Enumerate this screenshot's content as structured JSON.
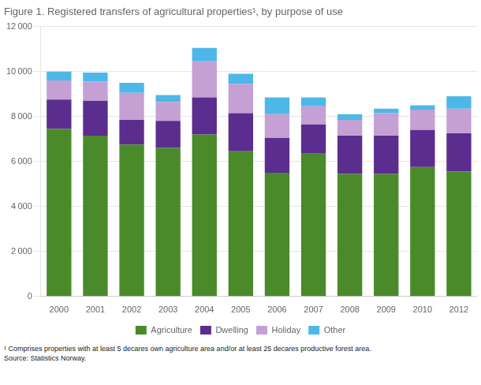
{
  "chart_data": {
    "type": "bar",
    "stacked": true,
    "title": "Figure 1. Registered transfers of agricultural properties¹, by purpose of use",
    "footnote": "¹ Comprises properties with at least 5 decares own agriculture area and/or at least 25 decares productive forest area.\nSource: Statistics Norway.",
    "categories": [
      "2000",
      "2001",
      "2002",
      "2003",
      "2004",
      "2005",
      "2006",
      "2007",
      "2008",
      "2009",
      "2010",
      "2012"
    ],
    "series": [
      {
        "name": "Agriculture",
        "color": "#4a8a2a",
        "values": [
          7450,
          7150,
          6750,
          6600,
          7200,
          6450,
          5500,
          6350,
          5450,
          5450,
          5750,
          5550
        ]
      },
      {
        "name": "Dwelling",
        "color": "#5b2d8e",
        "values": [
          1300,
          1550,
          1100,
          1200,
          1650,
          1700,
          1550,
          1300,
          1700,
          1700,
          1650,
          1700
        ]
      },
      {
        "name": "Holiday",
        "color": "#c4a0d4",
        "values": [
          850,
          850,
          1200,
          850,
          1600,
          1300,
          1050,
          800,
          700,
          1000,
          900,
          1100
        ]
      },
      {
        "name": "Other",
        "color": "#4db8e8",
        "values": [
          400,
          400,
          450,
          300,
          600,
          450,
          750,
          400,
          250,
          200,
          200,
          550
        ]
      }
    ],
    "ylim": [
      0,
      12000
    ],
    "yticks": [
      0,
      {
        "value": 2000,
        "label": "2 000"
      },
      {
        "value": 4000,
        "label": "4 000"
      },
      {
        "value": 6000,
        "label": "6 000"
      },
      {
        "value": 8000,
        "label": "8 000"
      },
      {
        "value": 10000,
        "label": "10 000"
      },
      {
        "value": 12000,
        "label": "12 000"
      }
    ],
    "grid": true,
    "legend": "bottom"
  }
}
